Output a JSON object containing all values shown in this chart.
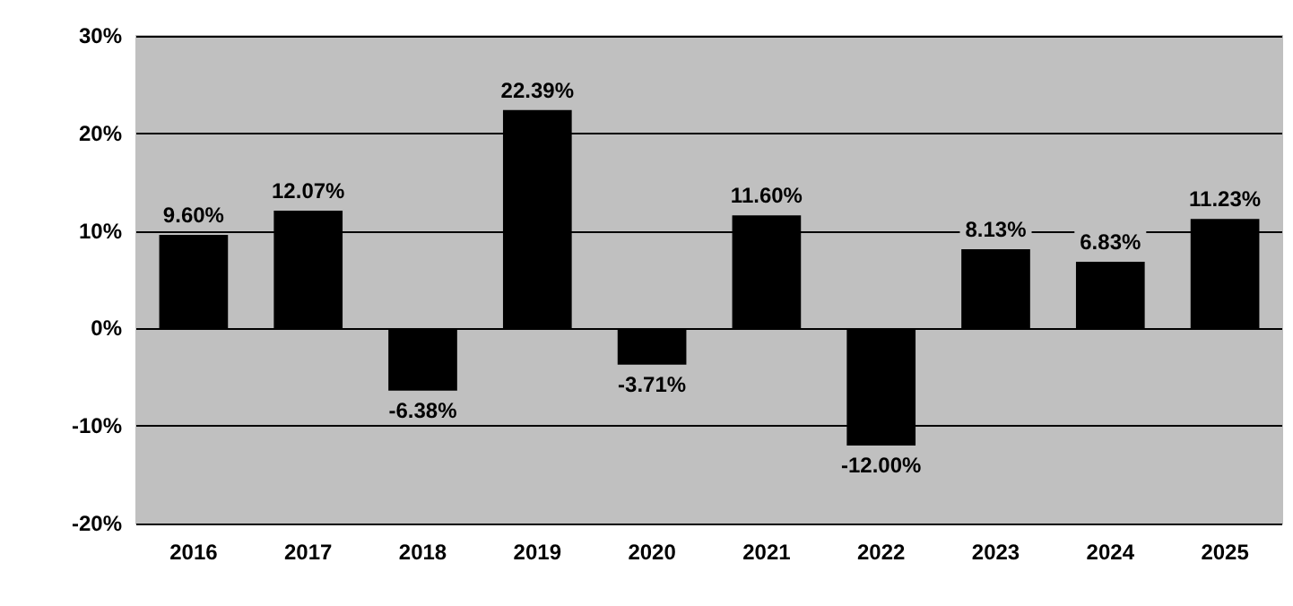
{
  "chart_data": {
    "type": "bar",
    "categories": [
      "2016",
      "2017",
      "2018",
      "2019",
      "2020",
      "2021",
      "2022",
      "2023",
      "2024",
      "2025"
    ],
    "values": [
      9.6,
      12.07,
      -6.38,
      22.39,
      -3.71,
      11.6,
      -12.0,
      8.13,
      6.83,
      11.23
    ],
    "value_labels": [
      "9.60%",
      "12.07%",
      "-6.38%",
      "22.39%",
      "-3.71%",
      "11.60%",
      "-12.00%",
      "8.13%",
      "6.83%",
      "11.23%"
    ],
    "color": "#000000",
    "ylim": [
      -20,
      30
    ],
    "yticks": [
      {
        "value": -20,
        "label": "-20%"
      },
      {
        "value": -10,
        "label": "-10%"
      },
      {
        "value": 0,
        "label": "0%"
      },
      {
        "value": 10,
        "label": "10%"
      },
      {
        "value": 20,
        "label": "20%"
      },
      {
        "value": 30,
        "label": "30%"
      }
    ],
    "grid": "y"
  }
}
